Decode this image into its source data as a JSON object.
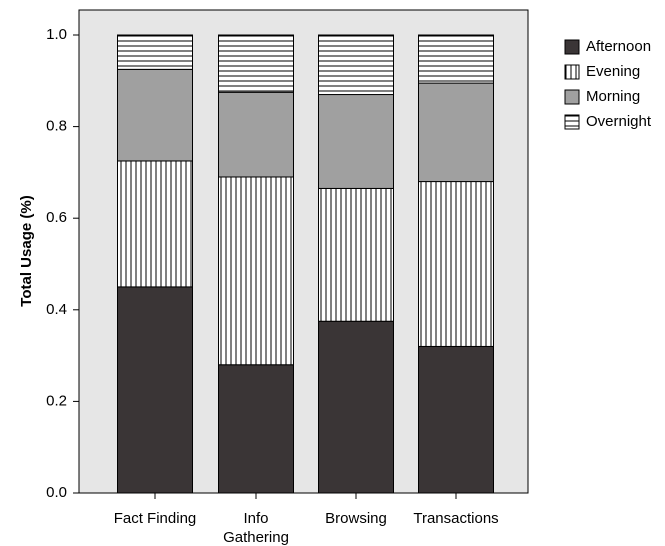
{
  "chart_data": {
    "type": "bar",
    "stacked": true,
    "title": "",
    "xlabel": "",
    "ylabel": "Total Usage (%)",
    "ylim": [
      0,
      1.0
    ],
    "yticks": [
      "0.0",
      "0.2",
      "0.4",
      "0.6",
      "0.8",
      "1.0"
    ],
    "categories": [
      [
        "Fact Finding"
      ],
      [
        "Info",
        "Gathering"
      ],
      [
        "Browsing"
      ],
      [
        "Transactions"
      ]
    ],
    "series": [
      {
        "name": "Afternoon",
        "values": [
          0.45,
          0.28,
          0.375,
          0.32
        ],
        "color": "#3a3536",
        "pattern": "solid"
      },
      {
        "name": "Evening",
        "values": [
          0.275,
          0.41,
          0.29,
          0.36
        ],
        "color": "#ffffff",
        "pattern": "vertical-lines"
      },
      {
        "name": "Morning",
        "values": [
          0.2,
          0.185,
          0.205,
          0.215
        ],
        "color": "#a0a0a0",
        "pattern": "solid"
      },
      {
        "name": "Overnight",
        "values": [
          0.075,
          0.125,
          0.13,
          0.105
        ],
        "color": "#ffffff",
        "pattern": "horizontal-lines"
      }
    ],
    "legend_position": "right",
    "grid": false,
    "plot_background": "#e6e6e6"
  }
}
